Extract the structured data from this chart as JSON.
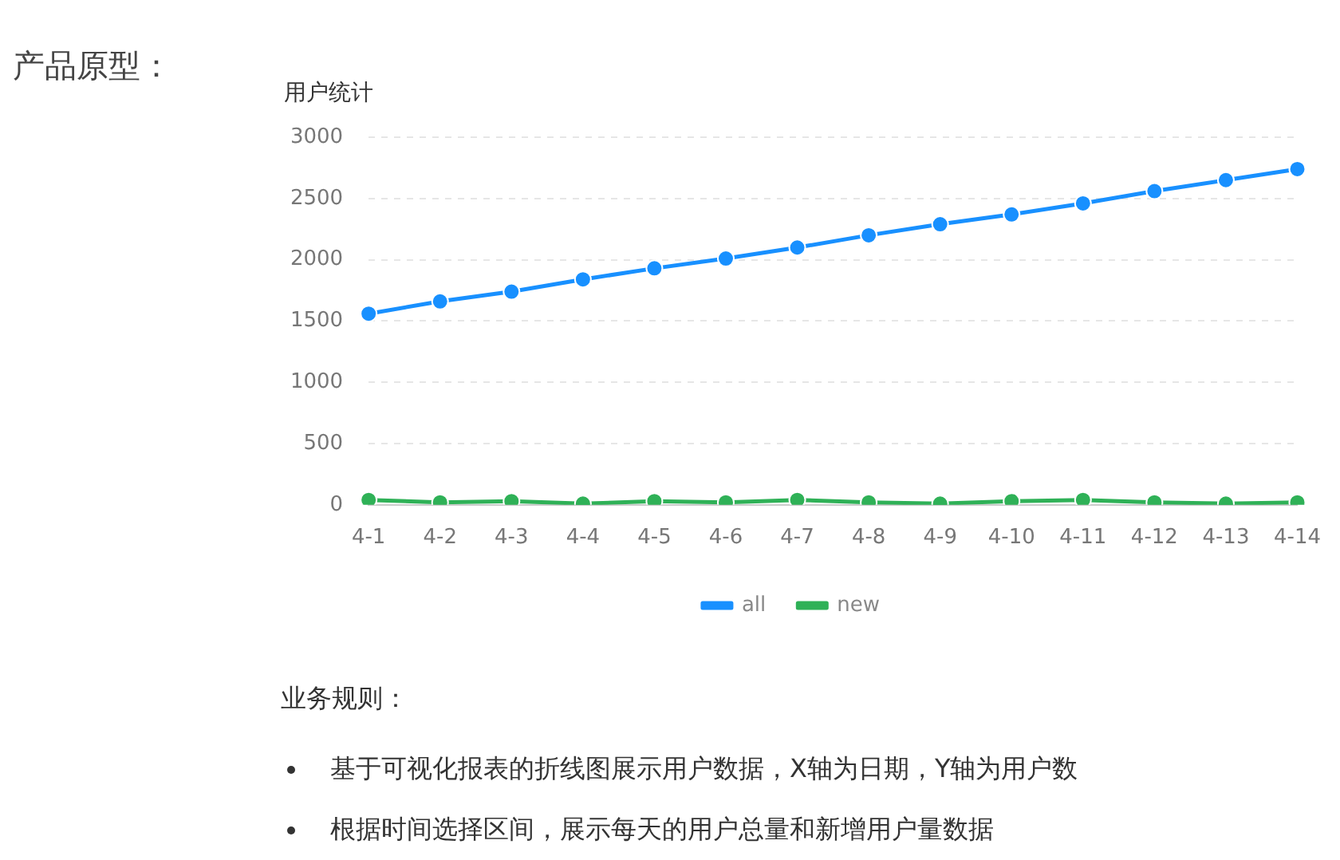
{
  "chart_data": {
    "type": "line",
    "title": "产品原型：",
    "ylabel": "用户统计",
    "categories": [
      "4-1",
      "4-2",
      "4-3",
      "4-4",
      "4-5",
      "4-6",
      "4-7",
      "4-8",
      "4-9",
      "4-10",
      "4-11",
      "4-12",
      "4-13",
      "4-14"
    ],
    "series": [
      {
        "name": "all",
        "color": "#1890ff",
        "values": [
          1560,
          1660,
          1740,
          1840,
          1930,
          2010,
          2100,
          2200,
          2290,
          2370,
          2460,
          2560,
          2650,
          2740
        ]
      },
      {
        "name": "new",
        "color": "#2fb157",
        "values": [
          40,
          20,
          30,
          10,
          30,
          20,
          40,
          20,
          10,
          30,
          40,
          20,
          10,
          20
        ]
      }
    ],
    "ylim": [
      0,
      3000
    ],
    "yticks": [
      0,
      500,
      1000,
      1500,
      2000,
      2500,
      3000
    ],
    "grid": "y",
    "legend": "bottom",
    "marker": "circle",
    "line_style": "solid",
    "annotations": [
      "业务规则：",
      "基于可视化报表的折线图展示用户数据，X轴为日期，Y轴为用户数",
      "根据时间选择区间，展示每天的用户总量和新增用户量数据"
    ]
  }
}
